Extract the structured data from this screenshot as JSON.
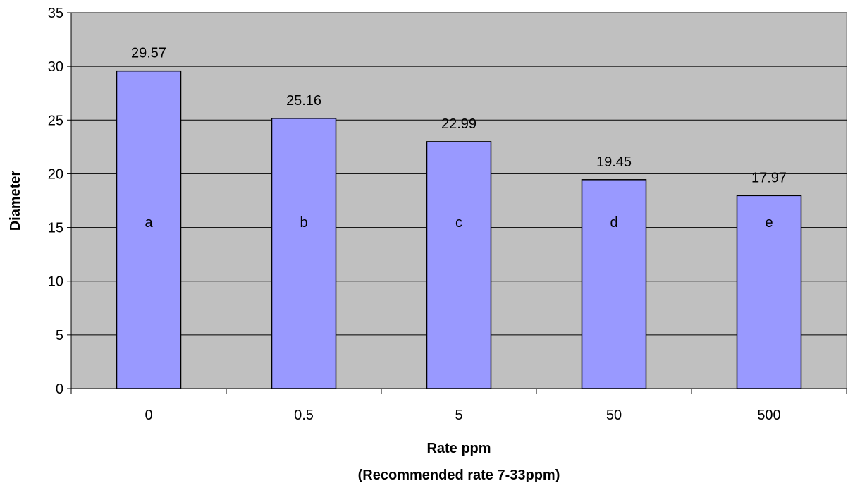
{
  "chart_data": {
    "type": "bar",
    "categories": [
      "0",
      "0.5",
      "5",
      "50",
      "500"
    ],
    "values": [
      29.57,
      25.16,
      22.99,
      19.45,
      17.97
    ],
    "data_labels": [
      "29.57",
      "25.16",
      "22.99",
      "19.45",
      "17.97"
    ],
    "letters": [
      "a",
      "b",
      "c",
      "d",
      "e"
    ],
    "title": "",
    "xlabel": "Rate ppm",
    "xlabel_line2": "(Recommended rate 7-33ppm)",
    "ylabel": "Diameter",
    "ylim": [
      0,
      35
    ],
    "yticks": [
      0,
      5,
      10,
      15,
      20,
      25,
      30,
      35
    ],
    "grid": true,
    "legend": "none",
    "colors": {
      "plot_background": "#c0c0c0",
      "bar_fill": "#9999ff",
      "bar_stroke": "#000000",
      "gridline": "#000000"
    }
  }
}
